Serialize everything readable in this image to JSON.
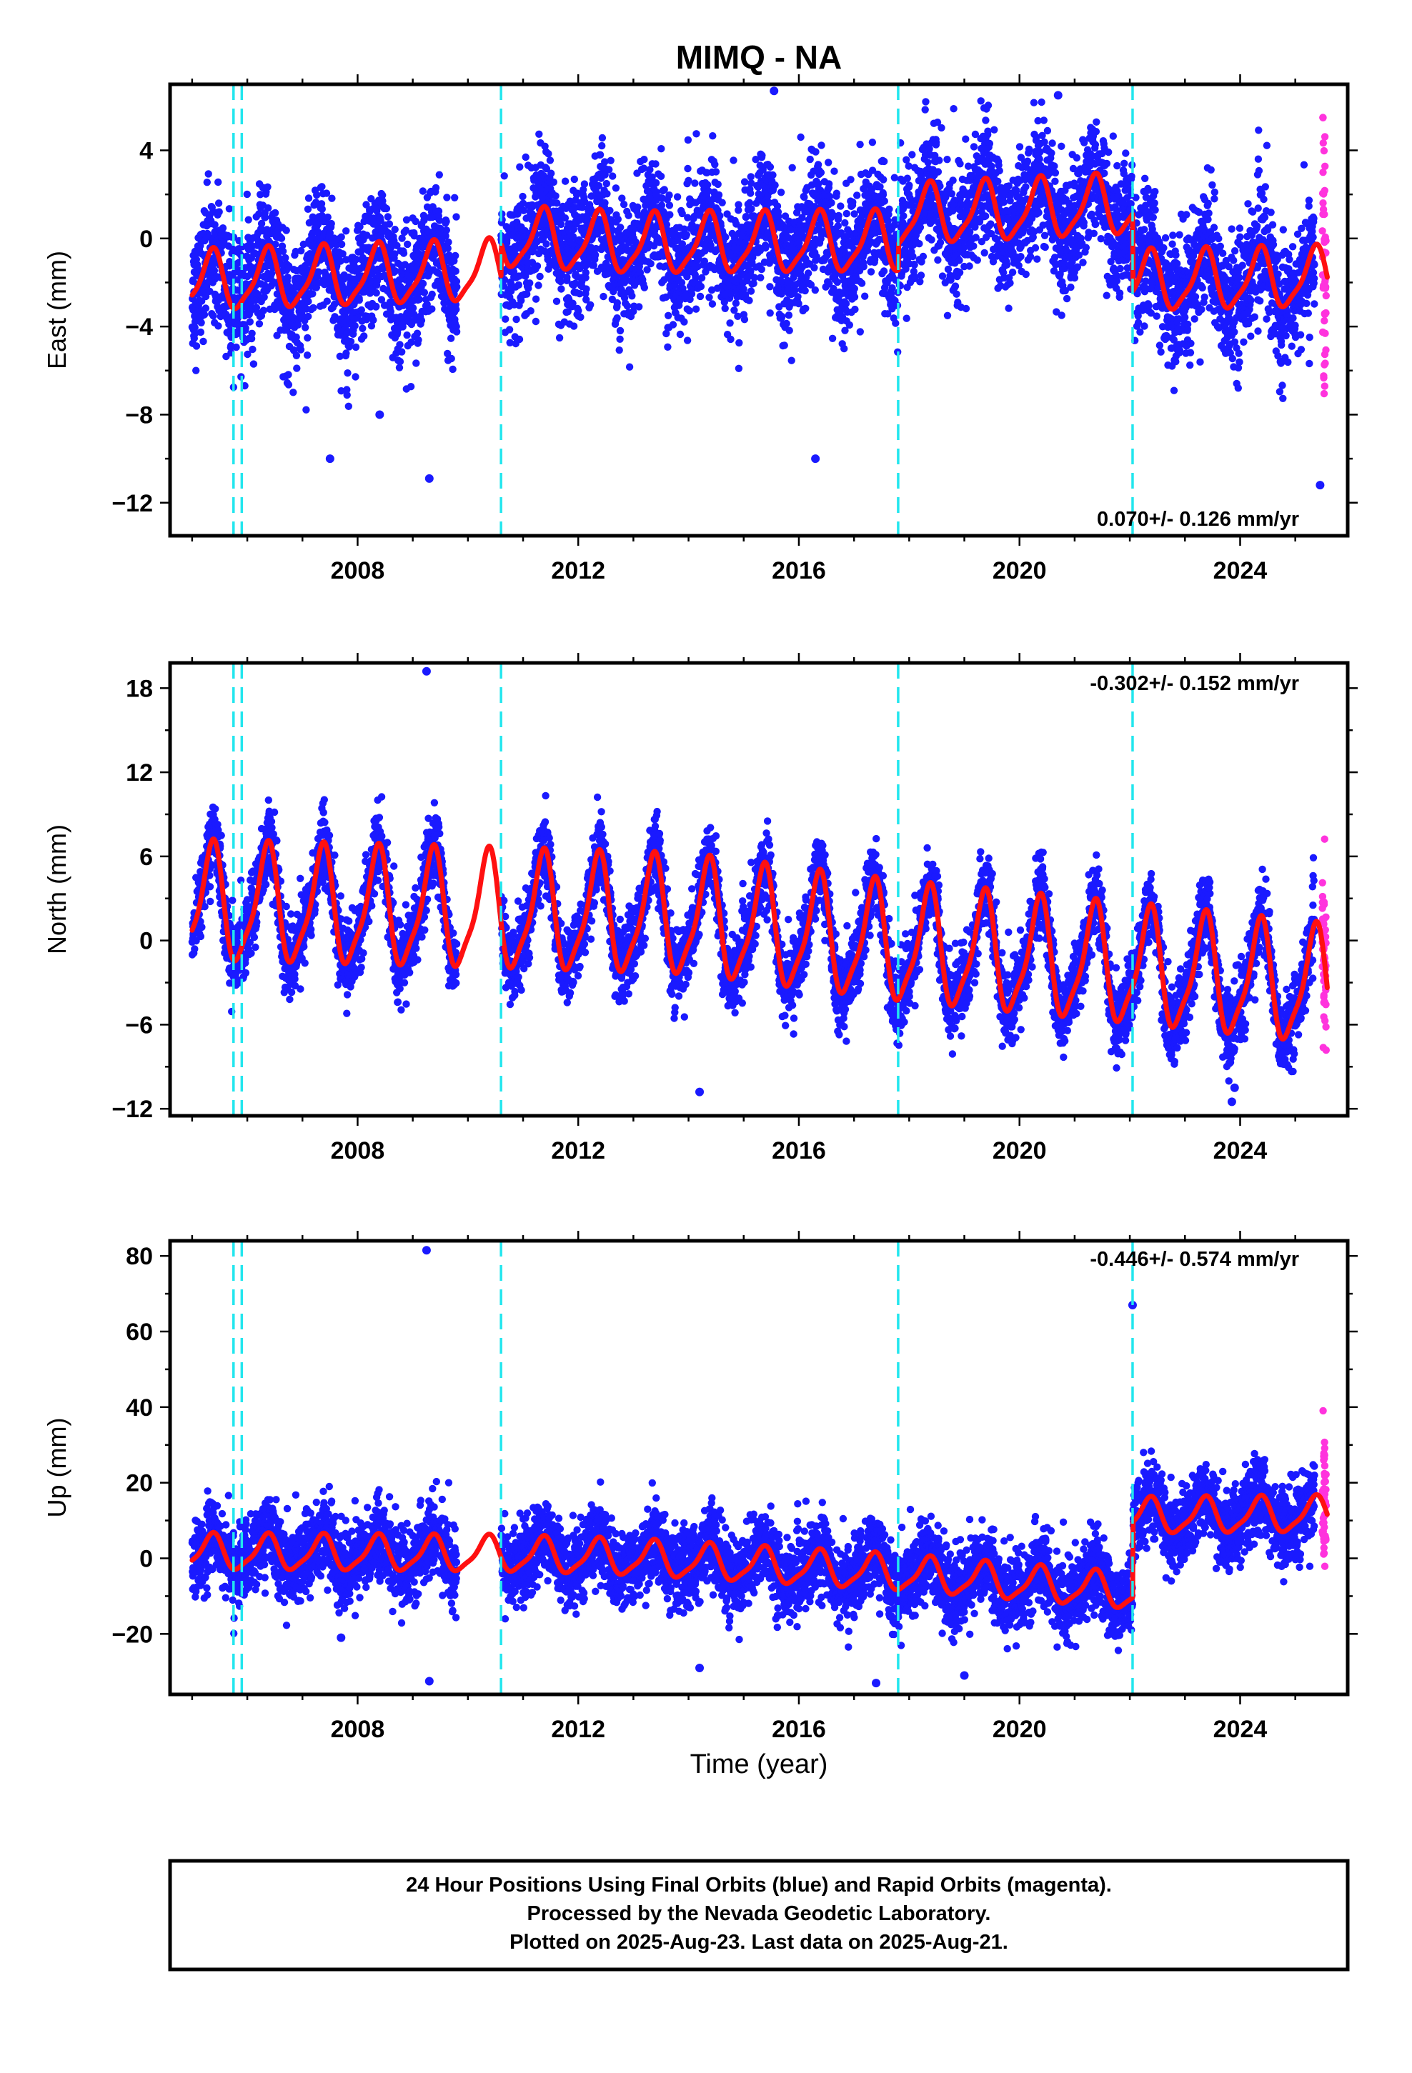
{
  "title": "MIMQ - NA",
  "x_axis_label": "Time (year)",
  "footer": {
    "line1": "24 Hour Positions Using Final Orbits (blue) and Rapid Orbits (magenta).",
    "line2": "Processed by the Nevada Geodetic Laboratory.",
    "line3": "Plotted on 2025-Aug-23. Last data on 2025-Aug-21."
  },
  "colors": {
    "final_orbits": "#1a1aff",
    "rapid_orbits": "#ff33dd",
    "model": "#ff1010",
    "steps": "#22e6ee"
  },
  "chart_data": [
    {
      "type": "scatter",
      "component": "east",
      "ylabel": "East (mm)",
      "rate_text": "0.070+/- 0.126 mm/yr",
      "xlim": [
        2004.6,
        2025.95
      ],
      "ylim": [
        -13.5,
        7.0
      ],
      "xticks": [
        2008,
        2012,
        2016,
        2020,
        2024
      ],
      "yticks": [
        4,
        0,
        -4,
        -8,
        -12
      ],
      "ytick_labels": [
        "4",
        "0",
        "−4",
        "−8",
        "−12"
      ],
      "data_start": 2005.0,
      "data_gap": [
        2009.8,
        2010.6
      ],
      "rapid_start": 2025.35,
      "steps": [
        2005.75,
        2005.9,
        2010.6,
        2017.8,
        2022.05
      ],
      "model_baseline": [
        [
          2005.0,
          -2.0
        ],
        [
          2010.6,
          -1.5
        ],
        [
          2010.61,
          0.0
        ],
        [
          2013.0,
          -0.3
        ],
        [
          2017.8,
          -0.2
        ],
        [
          2017.81,
          1.0
        ],
        [
          2022.05,
          1.5
        ],
        [
          2022.06,
          -2.0
        ],
        [
          2025.6,
          -1.8
        ]
      ],
      "annual_amplitude": 1.3,
      "scatter_sigma": 1.4,
      "outliers": [
        [
          2007.5,
          -10.0
        ],
        [
          2008.4,
          -8.0
        ],
        [
          2009.3,
          -10.9
        ],
        [
          2016.3,
          -10.0
        ],
        [
          2015.55,
          6.7
        ],
        [
          2020.7,
          6.5
        ],
        [
          2025.45,
          -11.2
        ]
      ]
    },
    {
      "type": "scatter",
      "component": "north",
      "ylabel": "North (mm)",
      "rate_text": "-0.302+/- 0.152 mm/yr",
      "xlim": [
        2004.6,
        2025.95
      ],
      "ylim": [
        -12.5,
        19.8
      ],
      "xticks": [
        2008,
        2012,
        2016,
        2020,
        2024
      ],
      "yticks": [
        18,
        12,
        6,
        0,
        -6,
        -12
      ],
      "ytick_labels": [
        "18",
        "12",
        "6",
        "0",
        "−6",
        "−12"
      ],
      "data_start": 2005.0,
      "data_gap": [
        2009.8,
        2010.6
      ],
      "rapid_start": 2025.35,
      "steps": [
        2005.75,
        2005.9,
        2010.6,
        2017.8,
        2022.05
      ],
      "model_baseline": [
        [
          2005.0,
          2.5
        ],
        [
          2010.0,
          2.0
        ],
        [
          2014.0,
          1.5
        ],
        [
          2018.0,
          -0.5
        ],
        [
          2022.0,
          -2.0
        ],
        [
          2025.6,
          -3.5
        ]
      ],
      "annual_amplitude": 4.0,
      "scatter_sigma": 1.3,
      "outliers": [
        [
          2009.25,
          19.2
        ],
        [
          2014.2,
          -10.8
        ],
        [
          2023.85,
          -11.5
        ],
        [
          2023.9,
          -10.5
        ]
      ]
    },
    {
      "type": "scatter",
      "component": "up",
      "ylabel": "Up (mm)",
      "rate_text": "-0.446+/- 0.574 mm/yr",
      "xlim": [
        2004.6,
        2025.95
      ],
      "ylim": [
        -36,
        84
      ],
      "xticks": [
        2008,
        2012,
        2016,
        2020,
        2024
      ],
      "yticks": [
        80,
        60,
        40,
        20,
        0,
        -20
      ],
      "ytick_labels": [
        "80",
        "60",
        "40",
        "20",
        "0",
        "−20"
      ],
      "data_start": 2005.0,
      "data_gap": [
        2009.8,
        2010.6
      ],
      "rapid_start": 2025.35,
      "steps": [
        2005.75,
        2005.9,
        2010.6,
        2017.8,
        2022.05
      ],
      "model_baseline": [
        [
          2005.0,
          1.5
        ],
        [
          2010.6,
          1.0
        ],
        [
          2013.0,
          0.0
        ],
        [
          2017.8,
          -4.0
        ],
        [
          2022.05,
          -9.0
        ],
        [
          2022.06,
          11.0
        ],
        [
          2025.6,
          11.5
        ]
      ],
      "annual_amplitude": 4.5,
      "scatter_sigma": 5.0,
      "outliers": [
        [
          2009.25,
          81.5
        ],
        [
          2022.05,
          67.0
        ],
        [
          2007.7,
          -21.0
        ],
        [
          2009.3,
          -32.5
        ],
        [
          2014.2,
          -29.0
        ],
        [
          2017.4,
          -33.0
        ],
        [
          2019.0,
          -31.0
        ]
      ]
    }
  ]
}
